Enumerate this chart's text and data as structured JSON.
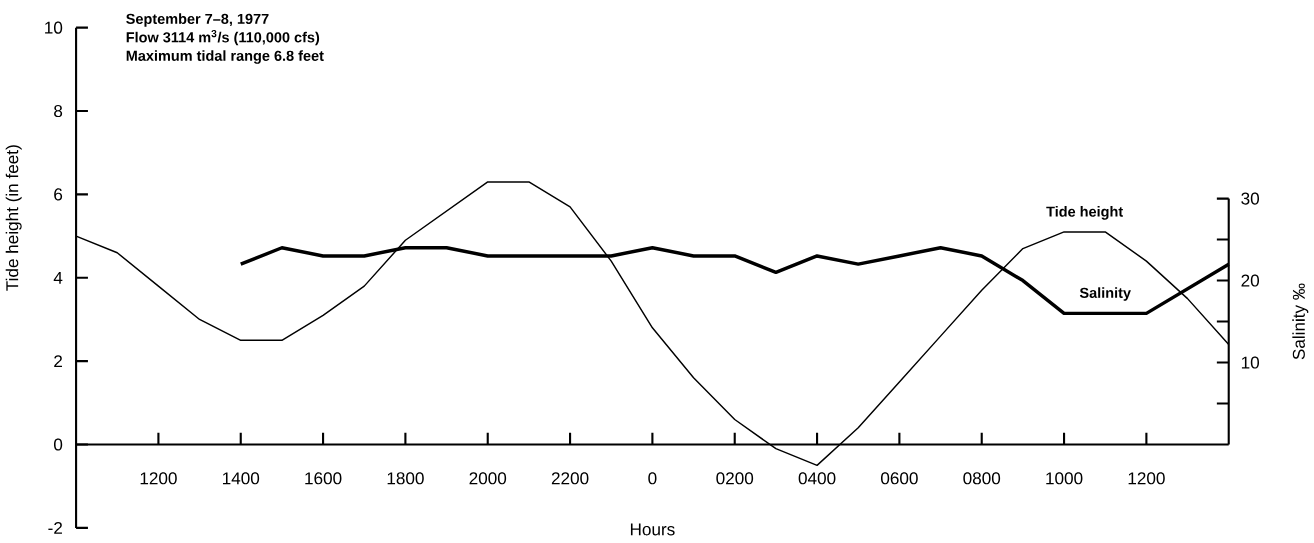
{
  "chart_data": {
    "type": "line",
    "title": "September 7–8, 1977",
    "subtitle": "Flow 3114 m$^{3}$/s  (110,000 cfs)",
    "annotations": [
      "Maximum tidal range 6.8 feet"
    ],
    "xlabel": "Hours",
    "ylabel": "Tide height (in feet)",
    "y2label": "Salinity ‰",
    "categories": [
      null,
      null,
      "1200",
      null,
      "1400",
      null,
      "1600",
      null,
      "1800",
      null,
      "2000",
      null,
      "2200",
      null,
      "0",
      null,
      "0200",
      null,
      "0400",
      null,
      "0600",
      null,
      "0800",
      null,
      "1000",
      null,
      "1200",
      null,
      null
    ],
    "ylim": [
      -2,
      10
    ],
    "yticks": [
      -2,
      0,
      2,
      4,
      6,
      8,
      10
    ],
    "y2lim": [
      0,
      30
    ],
    "y2ticks": [
      {
        "value": 5,
        "label": null
      },
      10,
      {
        "value": 15,
        "label": null
      },
      20,
      {
        "value": 25,
        "label": null
      },
      30
    ],
    "legend": false,
    "marker": "none",
    "series": [
      {
        "name": "Tide height",
        "color": "#000000",
        "values": [
          5.0,
          4.6,
          3.8,
          3.0,
          2.5,
          2.5,
          3.1,
          3.8,
          4.9,
          5.6,
          6.3,
          6.3,
          5.7,
          4.4,
          2.8,
          1.6,
          0.6,
          -0.1,
          -0.5,
          0.4,
          1.5,
          2.6,
          3.7,
          4.7,
          5.1,
          5.1,
          4.4,
          3.5,
          2.4
        ]
      },
      {
        "name": "Salinity",
        "color": "#000000",
        "axis": "y2",
        "values": [
          null,
          null,
          null,
          null,
          22,
          24,
          23,
          23,
          24,
          24,
          23,
          23,
          23,
          23,
          24,
          23,
          23,
          21,
          23,
          22,
          23,
          24,
          23,
          20,
          16,
          16,
          16,
          19,
          22
        ]
      }
    ]
  }
}
